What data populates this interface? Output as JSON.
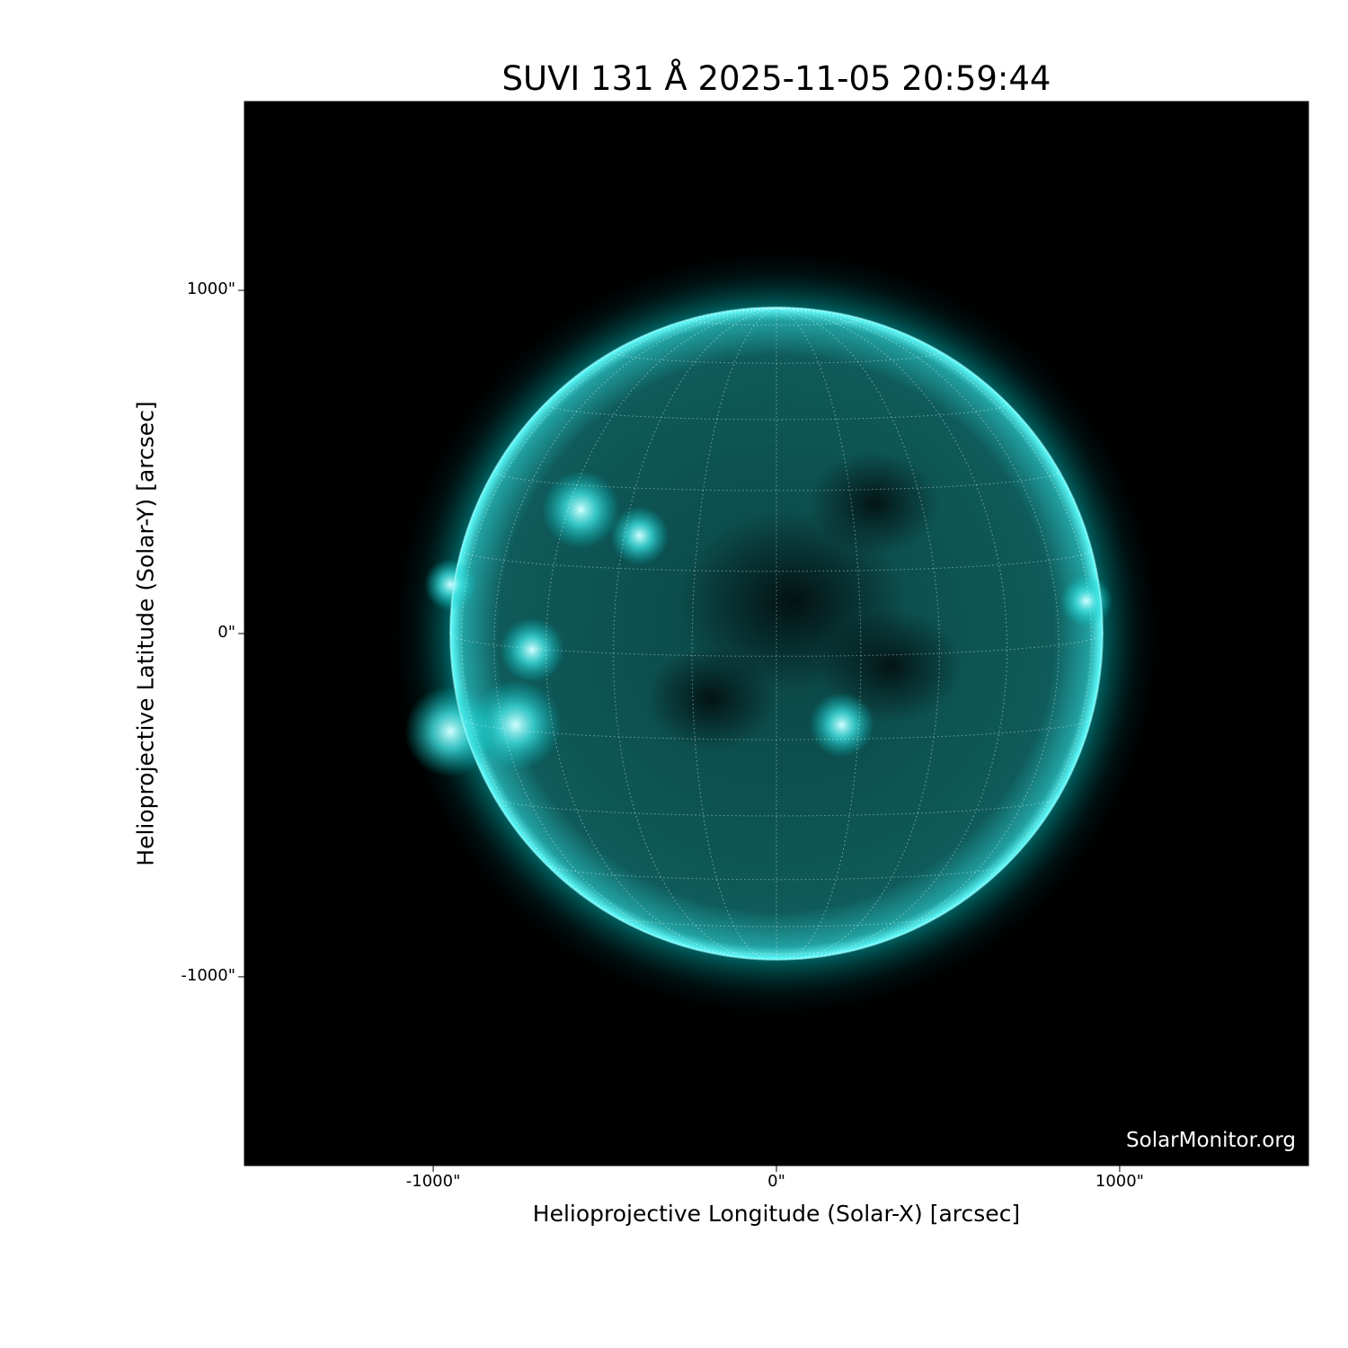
{
  "chart_data": {
    "type": "image",
    "title": "SUVI 131 Å 2025-11-05 20:59:44",
    "xlabel": "Helioprojective Longitude (Solar-X) [arcsec]",
    "ylabel": "Helioprojective Latitude (Solar-Y) [arcsec]",
    "xlim": [
      -1550,
      1550
    ],
    "ylim": [
      -1550,
      1550
    ],
    "x_ticks": [
      {
        "value": -1000,
        "label": "-1000\""
      },
      {
        "value": 0,
        "label": "0\""
      },
      {
        "value": 1000,
        "label": "1000\""
      }
    ],
    "y_ticks": [
      {
        "value": 1000,
        "label": "1000\""
      },
      {
        "value": 0,
        "label": "0\""
      },
      {
        "value": -1000,
        "label": "-1000\""
      }
    ],
    "solar_radius_arcsec": 950,
    "grid": "heliographic, 15° spacing, dotted",
    "colormap_color": "#00e0e0",
    "background": "#000000",
    "watermark": "SolarMonitor.org"
  }
}
